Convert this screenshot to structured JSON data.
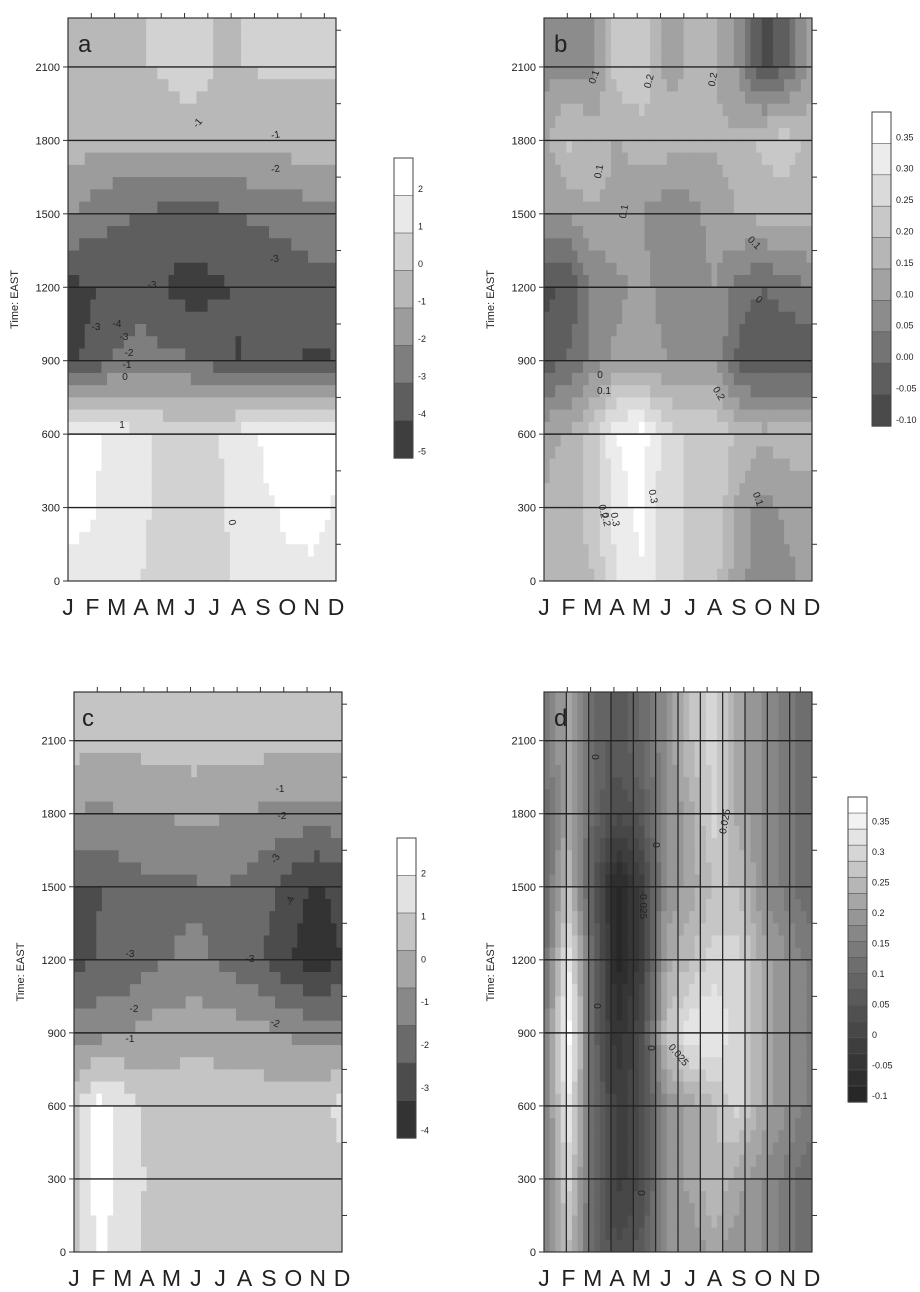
{
  "figure": {
    "months": [
      "J",
      "F",
      "M",
      "A",
      "M",
      "J",
      "J",
      "A",
      "S",
      "O",
      "N",
      "D"
    ],
    "time_ticks": [
      0,
      300,
      600,
      900,
      1200,
      1500,
      1800,
      2100
    ],
    "time_axis_label": "Time: EAST"
  },
  "chart_data": [
    {
      "type": "heatmap",
      "panel_label": "a",
      "x": [
        "J",
        "F",
        "M",
        "A",
        "M",
        "J",
        "J",
        "A",
        "S",
        "O",
        "N",
        "D"
      ],
      "y": [
        0,
        300,
        600,
        900,
        1200,
        1500,
        1800,
        2100
      ],
      "ylabel": "Time: EAST",
      "ylim": [
        0,
        2300
      ],
      "grid": "horizontal",
      "z": [
        [
          0.8,
          0.9,
          0.7,
          0.2,
          0.0,
          -0.1,
          0.0,
          0.3,
          0.8,
          0.9,
          0.9,
          0.7
        ],
        [
          1.3,
          1.1,
          0.6,
          0.3,
          0.0,
          -0.1,
          0.0,
          0.4,
          0.9,
          1.2,
          1.3,
          1.0
        ],
        [
          1.5,
          1.3,
          0.7,
          0.3,
          0.1,
          0.0,
          0.1,
          0.5,
          1.2,
          1.5,
          1.4,
          1.2
        ],
        [
          -4.3,
          -4.0,
          -3.2,
          -3.0,
          -3.1,
          -3.2,
          -3.6,
          -4.2,
          -3.8,
          -4.1,
          -4.3,
          -4.2
        ],
        [
          -4.4,
          -4.2,
          -3.8,
          -3.6,
          -4.2,
          -4.6,
          -4.3,
          -4.1,
          -4.0,
          -3.8,
          -3.6,
          -3.6
        ],
        [
          -2.4,
          -2.8,
          -3.2,
          -3.3,
          -3.6,
          -3.5,
          -3.5,
          -3.3,
          -3.1,
          -3.0,
          -2.8,
          -2.7
        ],
        [
          -0.9,
          -1.3,
          -1.4,
          -1.3,
          -1.2,
          -1.1,
          -1.2,
          -1.3,
          -1.2,
          -1.1,
          -1.0,
          -1.0
        ],
        [
          -0.7,
          -0.8,
          -0.8,
          -0.7,
          -0.6,
          -0.2,
          -0.7,
          -0.7,
          -0.6,
          -0.6,
          -0.6,
          -0.6
        ]
      ],
      "contour_labels": [
        "-1",
        "-1",
        "-2",
        "-3",
        "-3",
        "-4",
        "-3",
        "-2",
        "-1",
        "0",
        "1",
        "0",
        "-3"
      ],
      "colorbar": {
        "ticks": [
          "2",
          "1",
          "0",
          "-1",
          "-2",
          "-3",
          "-4",
          "-5"
        ],
        "shades": [
          "#ffffff",
          "#e9e9e9",
          "#d2d2d2",
          "#b8b8b8",
          "#9c9c9c",
          "#7e7e7e",
          "#5e5e5e",
          "#3e3e3e"
        ]
      }
    },
    {
      "type": "heatmap",
      "panel_label": "b",
      "x": [
        "J",
        "F",
        "M",
        "A",
        "M",
        "J",
        "J",
        "A",
        "S",
        "O",
        "N",
        "D"
      ],
      "y": [
        0,
        300,
        600,
        900,
        1200,
        1500,
        1800,
        2100
      ],
      "ylabel": "Time: EAST",
      "ylim": [
        0,
        2300
      ],
      "grid": "horizontal",
      "z": [
        [
          0.15,
          0.15,
          0.18,
          0.27,
          0.31,
          0.24,
          0.22,
          0.2,
          0.1,
          0.06,
          0.08,
          0.1
        ],
        [
          0.14,
          0.16,
          0.2,
          0.3,
          0.33,
          0.24,
          0.22,
          0.22,
          0.12,
          0.07,
          0.1,
          0.12
        ],
        [
          0.12,
          0.14,
          0.2,
          0.32,
          0.34,
          0.25,
          0.22,
          0.22,
          0.17,
          0.15,
          0.16,
          0.15
        ],
        [
          -0.03,
          0.0,
          0.06,
          0.1,
          0.1,
          0.09,
          0.09,
          0.08,
          -0.02,
          -0.05,
          -0.05,
          -0.04
        ],
        [
          -0.06,
          -0.04,
          0.05,
          0.08,
          0.1,
          0.08,
          0.07,
          0.09,
          0.02,
          0.0,
          0.02,
          0.05
        ],
        [
          0.09,
          0.1,
          0.13,
          0.12,
          0.09,
          0.06,
          0.07,
          0.11,
          0.14,
          0.15,
          0.16,
          0.15
        ],
        [
          0.12,
          0.19,
          0.17,
          0.13,
          0.16,
          0.16,
          0.15,
          0.14,
          0.15,
          0.2,
          0.2,
          0.16
        ],
        [
          0.07,
          0.08,
          0.07,
          0.21,
          0.22,
          0.12,
          0.14,
          0.14,
          0.08,
          -0.07,
          0.0,
          0.12
        ]
      ],
      "contour_labels": [
        "0.1",
        "0.2",
        "0.1",
        "0.2",
        "0.1",
        "0.1",
        "0",
        "0",
        "0.1",
        "0.2",
        "0.3",
        "0.3",
        "0.2",
        "0.1",
        "0.2"
      ],
      "colorbar": {
        "ticks": [
          "0.35",
          "0.30",
          "0.25",
          "0.20",
          "0.15",
          "0.10",
          "0.05",
          "0.00",
          "-0.05",
          "-0.10"
        ],
        "shades": [
          "#ffffff",
          "#ececec",
          "#dadada",
          "#c8c8c8",
          "#b6b6b6",
          "#a2a2a2",
          "#8c8c8c",
          "#747474",
          "#5e5e5e",
          "#4a4a4a"
        ]
      }
    },
    {
      "type": "heatmap",
      "panel_label": "c",
      "x": [
        "J",
        "F",
        "M",
        "A",
        "M",
        "J",
        "J",
        "A",
        "S",
        "O",
        "N",
        "D"
      ],
      "y": [
        0,
        300,
        600,
        900,
        1200,
        1500,
        1800,
        2100
      ],
      "ylabel": "Time: EAST",
      "ylim": [
        0,
        2300
      ],
      "grid": "horizontal",
      "z": [
        [
          -0.5,
          0.8,
          0.2,
          -0.3,
          -0.4,
          -0.4,
          -0.4,
          -0.4,
          -0.5,
          -0.5,
          -0.4,
          -0.3
        ],
        [
          -0.4,
          1.0,
          0.4,
          -0.2,
          -0.4,
          -0.4,
          -0.4,
          -0.4,
          -0.4,
          -0.4,
          -0.4,
          -0.3
        ],
        [
          -0.4,
          1.0,
          0.4,
          -0.3,
          -0.5,
          -0.5,
          -0.5,
          -0.5,
          -0.5,
          -0.5,
          -0.4,
          0.1
        ],
        [
          -1.8,
          -1.9,
          -1.8,
          -1.4,
          -1.2,
          -1.1,
          -1.2,
          -1.3,
          -1.5,
          -1.8,
          -1.9,
          -1.9
        ],
        [
          -3.4,
          -3.1,
          -3.0,
          -2.6,
          -2.4,
          -2.3,
          -2.5,
          -2.9,
          -3.3,
          -4.0,
          -4.3,
          -3.9
        ],
        [
          -3.3,
          -3.2,
          -2.8,
          -2.6,
          -2.5,
          -2.5,
          -2.4,
          -2.6,
          -3.0,
          -3.6,
          -4.1,
          -3.6
        ],
        [
          -1.7,
          -1.8,
          -1.7,
          -1.7,
          -1.6,
          -1.4,
          -1.6,
          -1.7,
          -1.8,
          -1.9,
          -2.0,
          -1.8
        ],
        [
          -0.6,
          -0.7,
          -0.7,
          -0.6,
          -0.6,
          -0.5,
          -0.6,
          -0.6,
          -0.6,
          -0.6,
          -0.6,
          -0.6
        ]
      ],
      "contour_labels": [
        "-1",
        "-2",
        "-3",
        "-4",
        "-3",
        "-2",
        "-1",
        "-2",
        "-3"
      ],
      "colorbar": {
        "ticks": [
          "2",
          "1",
          "0",
          "-1",
          "-2",
          "-3",
          "-4"
        ],
        "shades": [
          "#ffffff",
          "#e2e2e2",
          "#c4c4c4",
          "#a6a6a6",
          "#888888",
          "#6a6a6a",
          "#4c4c4c",
          "#333333"
        ]
      }
    },
    {
      "type": "heatmap",
      "panel_label": "d",
      "x": [
        "J",
        "F",
        "M",
        "A",
        "M",
        "J",
        "J",
        "A",
        "S",
        "O",
        "N",
        "D"
      ],
      "y": [
        0,
        300,
        600,
        900,
        1200,
        1500,
        1800,
        2100
      ],
      "ylabel": "Time: EAST",
      "ylim": [
        0,
        2300
      ],
      "grid": "both",
      "z": [
        [
          0.005,
          0.02,
          0.0,
          -0.01,
          -0.005,
          0.01,
          0.01,
          0.015,
          0.01,
          0.01,
          0.005,
          0.0
        ],
        [
          0.005,
          0.025,
          0.0,
          -0.015,
          -0.01,
          0.01,
          0.015,
          0.02,
          0.015,
          0.01,
          0.005,
          0.0
        ],
        [
          0.005,
          0.03,
          0.0,
          -0.015,
          -0.01,
          0.01,
          0.015,
          0.02,
          0.025,
          0.015,
          0.01,
          0.005
        ],
        [
          0.005,
          0.035,
          0.0,
          -0.02,
          -0.01,
          0.02,
          0.03,
          0.03,
          0.025,
          0.015,
          0.01,
          0.005
        ],
        [
          0.0,
          0.03,
          0.0,
          -0.025,
          -0.015,
          0.015,
          0.02,
          0.025,
          0.025,
          0.015,
          0.01,
          0.005
        ],
        [
          0.0,
          0.02,
          -0.005,
          -0.025,
          -0.015,
          0.01,
          0.015,
          0.02,
          0.02,
          0.01,
          0.005,
          0.0
        ],
        [
          0.0,
          0.015,
          0.0,
          -0.01,
          -0.005,
          0.01,
          0.015,
          0.025,
          0.015,
          0.01,
          0.005,
          0.0
        ],
        [
          0.005,
          0.015,
          0.0,
          -0.005,
          0.0,
          0.01,
          0.02,
          0.025,
          0.015,
          0.01,
          0.005,
          0.0
        ]
      ],
      "contour_labels": [
        "0",
        "0.025",
        "0",
        "-0.025",
        "0",
        "0",
        "0.025",
        "0"
      ],
      "colorbar": {
        "ticks": [
          "0.35",
          "0.3",
          "0.25",
          "0.2",
          "0.15",
          "0.1",
          "0.05",
          "0",
          "-0.05",
          "-0.1"
        ],
        "shades": [
          "#ffffff",
          "#f2f2f2",
          "#e4e4e4",
          "#d6d6d6",
          "#c6c6c6",
          "#b6b6b6",
          "#a6a6a6",
          "#969696",
          "#878787",
          "#7a7a7a",
          "#6e6e6e",
          "#646464",
          "#5a5a5a",
          "#505050",
          "#474747",
          "#3e3e3e",
          "#363636",
          "#2e2e2e",
          "#272727"
        ]
      }
    }
  ]
}
